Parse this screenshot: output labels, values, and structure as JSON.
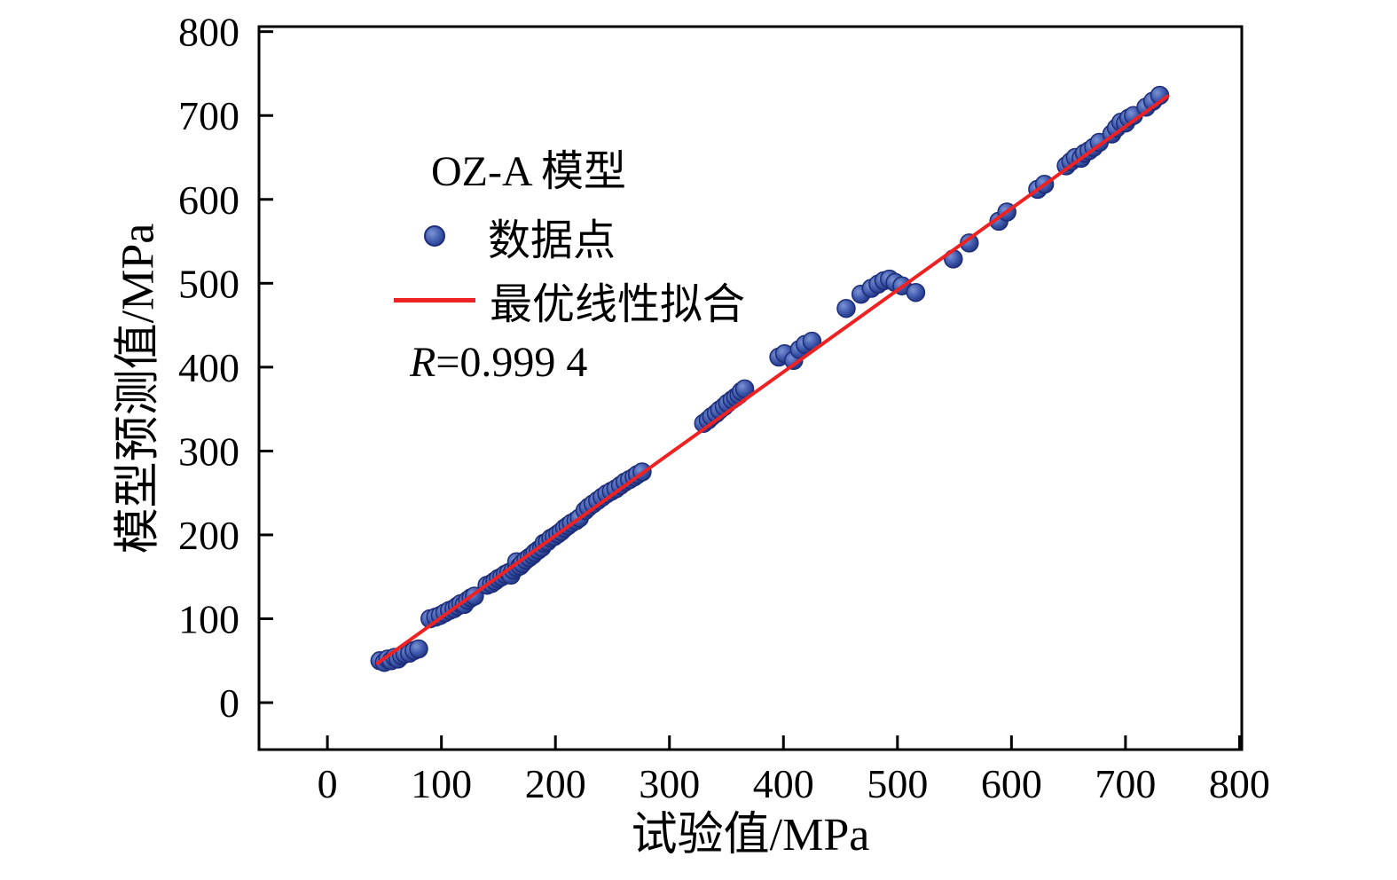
{
  "chart_data": {
    "type": "scatter",
    "title": "",
    "xlabel": "试验值/MPa",
    "ylabel": "模型预测值/MPa",
    "xlim": [
      0,
      800
    ],
    "ylim": [
      0,
      800
    ],
    "xticks": [
      0,
      100,
      200,
      300,
      400,
      500,
      600,
      700,
      800
    ],
    "yticks": [
      0,
      100,
      200,
      300,
      400,
      500,
      600,
      700,
      800
    ],
    "grid": false,
    "legend_position": "upper-left-inside",
    "legend": {
      "title": "OZ-A 模型",
      "point_label": "数据点",
      "line_label": "最优线性拟合",
      "r_symbol": "R",
      "r_value": "=0.999 4"
    },
    "colors": {
      "point_fill": "#3d57ab",
      "point_edge": "#1d2d78",
      "line": "#ee2222",
      "axis": "#000000"
    },
    "fit_line": [
      [
        44,
        47
      ],
      [
        737,
        723
      ]
    ],
    "points": [
      [
        46,
        50
      ],
      [
        50,
        48
      ],
      [
        53,
        52
      ],
      [
        56,
        50
      ],
      [
        59,
        54
      ],
      [
        62,
        52
      ],
      [
        65,
        56
      ],
      [
        68,
        58
      ],
      [
        72,
        59
      ],
      [
        76,
        62
      ],
      [
        80,
        64
      ],
      [
        90,
        100
      ],
      [
        95,
        102
      ],
      [
        99,
        104
      ],
      [
        103,
        107
      ],
      [
        107,
        110
      ],
      [
        111,
        112
      ],
      [
        114,
        115
      ],
      [
        117,
        118
      ],
      [
        120,
        117
      ],
      [
        123,
        122
      ],
      [
        126,
        125
      ],
      [
        129,
        127
      ],
      [
        140,
        140
      ],
      [
        144,
        142
      ],
      [
        147,
        145
      ],
      [
        150,
        148
      ],
      [
        153,
        150
      ],
      [
        156,
        153
      ],
      [
        159,
        155
      ],
      [
        161,
        152
      ],
      [
        163,
        158
      ],
      [
        166,
        161
      ],
      [
        166,
        168
      ],
      [
        169,
        163
      ],
      [
        171,
        166
      ],
      [
        174,
        170
      ],
      [
        177,
        173
      ],
      [
        180,
        176
      ],
      [
        182,
        179
      ],
      [
        185,
        182
      ],
      [
        188,
        185
      ],
      [
        190,
        190
      ],
      [
        193,
        192
      ],
      [
        196,
        196
      ],
      [
        199,
        198
      ],
      [
        202,
        201
      ],
      [
        205,
        204
      ],
      [
        208,
        208
      ],
      [
        211,
        211
      ],
      [
        214,
        214
      ],
      [
        218,
        217
      ],
      [
        221,
        220
      ],
      [
        226,
        229
      ],
      [
        229,
        233
      ],
      [
        233,
        237
      ],
      [
        237,
        241
      ],
      [
        241,
        245
      ],
      [
        245,
        249
      ],
      [
        249,
        252
      ],
      [
        253,
        255
      ],
      [
        257,
        259
      ],
      [
        261,
        263
      ],
      [
        265,
        266
      ],
      [
        269,
        269
      ],
      [
        272,
        272
      ],
      [
        276,
        275
      ],
      [
        330,
        333
      ],
      [
        334,
        337
      ],
      [
        337,
        341
      ],
      [
        341,
        345
      ],
      [
        344,
        349
      ],
      [
        348,
        353
      ],
      [
        351,
        357
      ],
      [
        355,
        361
      ],
      [
        358,
        364
      ],
      [
        361,
        367
      ],
      [
        363,
        371
      ],
      [
        366,
        374
      ],
      [
        396,
        412
      ],
      [
        401,
        416
      ],
      [
        409,
        408
      ],
      [
        414,
        421
      ],
      [
        419,
        427
      ],
      [
        425,
        431
      ],
      [
        455,
        470
      ],
      [
        468,
        487
      ],
      [
        477,
        494
      ],
      [
        483,
        499
      ],
      [
        488,
        503
      ],
      [
        493,
        505
      ],
      [
        498,
        501
      ],
      [
        504,
        497
      ],
      [
        516,
        489
      ],
      [
        549,
        529
      ],
      [
        563,
        548
      ],
      [
        589,
        574
      ],
      [
        596,
        585
      ],
      [
        623,
        612
      ],
      [
        629,
        618
      ],
      [
        648,
        640
      ],
      [
        652,
        645
      ],
      [
        656,
        650
      ],
      [
        661,
        649
      ],
      [
        664,
        655
      ],
      [
        668,
        658
      ],
      [
        672,
        662
      ],
      [
        677,
        668
      ],
      [
        688,
        678
      ],
      [
        692,
        685
      ],
      [
        696,
        692
      ],
      [
        700,
        691
      ],
      [
        703,
        697
      ],
      [
        707,
        700
      ],
      [
        718,
        710
      ],
      [
        724,
        717
      ],
      [
        730,
        724
      ]
    ]
  }
}
